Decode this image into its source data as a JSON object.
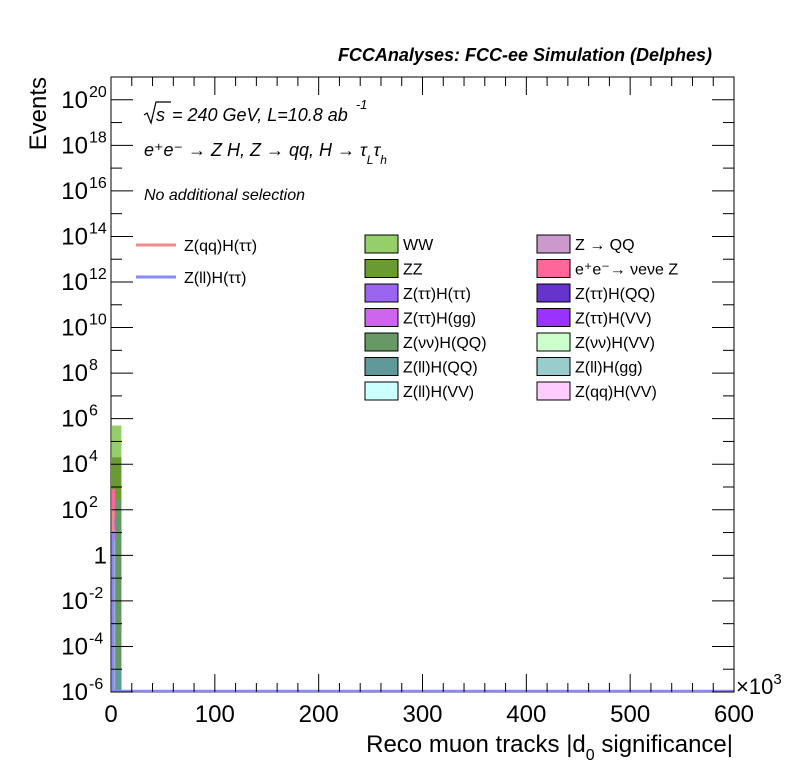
{
  "header": {
    "title": "FCCAnalyses: FCC-ee Simulation (Delphes)"
  },
  "annotations": {
    "energy_sqrt": "√s",
    "energy_rest": "= 240 GeV, L=10.8 ab",
    "energy_exp": "-1",
    "process_main": "e⁺e⁻ → Z H, Z → qq, H → τ",
    "process_sub1": "L",
    "process_mid": "τ",
    "process_sub2": "h",
    "selection": "No additional selection"
  },
  "axes": {
    "ylabel": "Events",
    "xlabel_main": "Reco muon tracks |d",
    "xlabel_sub": "0",
    "xlabel_rest": " significance|",
    "x_multiplier": "×10",
    "x_multiplier_exp": "3"
  },
  "legend": {
    "signals": [
      {
        "name": "Z(qq)H(ττ)",
        "color": "#f08a8a"
      },
      {
        "name": "Z(ll)H(ττ)",
        "color": "#8a8af5"
      }
    ],
    "backgrounds_col1": [
      {
        "name": "WW",
        "color": "#95cf6a"
      },
      {
        "name": "ZZ",
        "color": "#6a9a32"
      },
      {
        "name": "Z(ττ)H(ττ)",
        "color": "#9a66f0"
      },
      {
        "name": "Z(ττ)H(gg)",
        "color": "#cc66ee"
      },
      {
        "name": "Z(νν)H(QQ)",
        "color": "#669966"
      },
      {
        "name": "Z(ll)H(QQ)",
        "color": "#5f9999"
      },
      {
        "name": "Z(ll)H(VV)",
        "color": "#ccffff"
      }
    ],
    "backgrounds_col2": [
      {
        "name": "Z → QQ",
        "color": "#cc99cc"
      },
      {
        "name": "e⁺e⁻→ νeνe Z",
        "color": "#ff6699"
      },
      {
        "name": "Z(ττ)H(QQ)",
        "color": "#6633cc"
      },
      {
        "name": "Z(ττ)H(VV)",
        "color": "#9933ff"
      },
      {
        "name": "Z(νν)H(VV)",
        "color": "#ccffcc"
      },
      {
        "name": "Z(ll)H(gg)",
        "color": "#99cccc"
      },
      {
        "name": "Z(qq)H(VV)",
        "color": "#ffccff"
      }
    ]
  },
  "chart_data": {
    "type": "bar",
    "title": "FCCAnalyses: FCC-ee Simulation (Delphes)",
    "xlabel": "Reco muon tracks |d0 significance|",
    "ylabel": "Events",
    "x_scale_note": "×10^3",
    "xlim": [
      0,
      600
    ],
    "ylim": [
      1e-06,
      1e+21
    ],
    "y_scale": "log",
    "grid": false,
    "x_ticks": [
      0,
      100,
      200,
      300,
      400,
      500,
      600
    ],
    "x_tick_labels": [
      "0",
      "100",
      "200",
      "300",
      "400",
      "500",
      "600"
    ],
    "y_ticks": [
      {
        "value": 1e-06,
        "mant": "10",
        "exp": "-6"
      },
      {
        "value": 0.0001,
        "mant": "10",
        "exp": "-4"
      },
      {
        "value": 0.01,
        "mant": "10",
        "exp": "-2"
      },
      {
        "value": 1,
        "mant": "1",
        "exp": ""
      },
      {
        "value": 100.0,
        "mant": "10",
        "exp": "2"
      },
      {
        "value": 10000.0,
        "mant": "10",
        "exp": "4"
      },
      {
        "value": 1000000.0,
        "mant": "10",
        "exp": "6"
      },
      {
        "value": 100000000.0,
        "mant": "10",
        "exp": "8"
      },
      {
        "value": 10000000000.0,
        "mant": "10",
        "exp": "10"
      },
      {
        "value": 1000000000000.0,
        "mant": "10",
        "exp": "12"
      },
      {
        "value": 100000000000000.0,
        "mant": "10",
        "exp": "14"
      },
      {
        "value": 1e+16,
        "mant": "10",
        "exp": "16"
      },
      {
        "value": 1e+18,
        "mant": "10",
        "exp": "18"
      },
      {
        "value": 1e+20,
        "mant": "10",
        "exp": "20"
      }
    ],
    "stack_bins": [
      {
        "x0": 0,
        "x1": 10,
        "layers": [
          {
            "name": "Z(ll)H(VV)",
            "value": 1e-06
          },
          {
            "name": "Z(ll)H(QQ)",
            "value": 1e-05
          },
          {
            "name": "Z(νν)H(QQ)",
            "value": 300
          },
          {
            "name": "ZZ",
            "value": 20000.0
          },
          {
            "name": "WW",
            "value": 500000.0
          }
        ]
      },
      {
        "x0": 0,
        "x1": 4,
        "layers": [
          {
            "name": "e⁺e⁻→ νeνe Z",
            "value": 800
          },
          {
            "name": "Z(ττ)H(ττ)",
            "value": 40
          },
          {
            "name": "Z(ττ)H(gg)",
            "value": 20
          },
          {
            "name": "Z(ll)H(gg)",
            "value": 5
          }
        ]
      }
    ],
    "signals": [
      {
        "name": "Z(qq)H(ττ)",
        "points": [
          [
            0,
            100
          ],
          [
            2,
            100
          ],
          [
            2,
            1e-06
          ]
        ]
      },
      {
        "name": "Z(ll)H(ττ)",
        "points": [
          [
            0,
            10
          ],
          [
            2,
            10
          ],
          [
            2,
            1e-06
          ],
          [
            600,
            1e-06
          ]
        ]
      }
    ]
  }
}
